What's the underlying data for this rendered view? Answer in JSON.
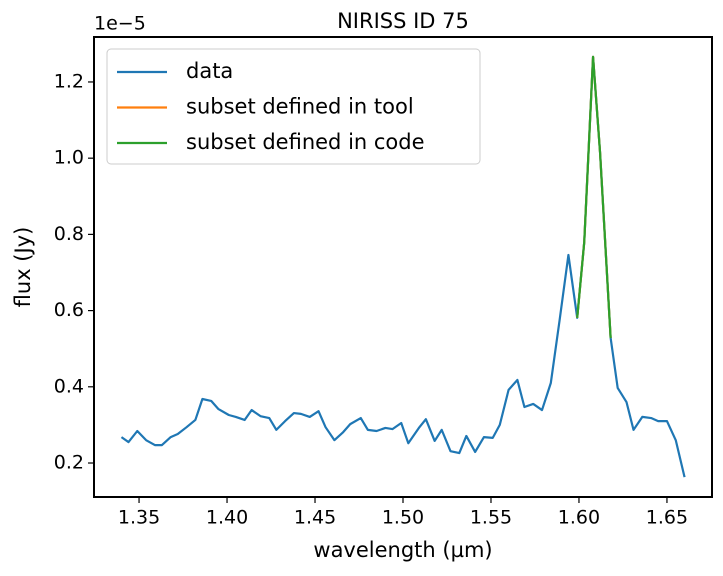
{
  "chart_data": {
    "type": "line",
    "title": "NIRISS ID 75",
    "x_label": "wavelength (µm)",
    "y_label": "flux (Jy)",
    "y_offset_label": "1e−5",
    "xlim": [
      1.3244,
      1.6756
    ],
    "ylim": [
      0.1108,
      1.318
    ],
    "xticks": [
      1.35,
      {
        "value": 1.4,
        "label": "1.40"
      },
      1.45,
      {
        "value": 1.5,
        "label": "1.50"
      },
      1.55,
      {
        "value": 1.6,
        "label": "1.60"
      },
      1.65
    ],
    "yticks": [
      0.2,
      0.4,
      0.6,
      0.8,
      {
        "value": 1,
        "label": "1.0"
      },
      1.2
    ],
    "legend": "upper left",
    "grid": false,
    "series": [
      {
        "name": "data",
        "color": "#1f77b4",
        "x": [
          1.34,
          1.344,
          1.349,
          1.354,
          1.359,
          1.363,
          1.368,
          1.372,
          1.377,
          1.382,
          1.386,
          1.391,
          1.395,
          1.401,
          1.405,
          1.41,
          1.414,
          1.419,
          1.424,
          1.428,
          1.433,
          1.438,
          1.442,
          1.447,
          1.452,
          1.456,
          1.461,
          1.466,
          1.47,
          1.476,
          1.48,
          1.485,
          1.49,
          1.494,
          1.499,
          1.503,
          1.509,
          1.513,
          1.518,
          1.522,
          1.527,
          1.532,
          1.536,
          1.541,
          1.546,
          1.551,
          1.555,
          1.56,
          1.565,
          1.569,
          1.574,
          1.579,
          1.584,
          1.589,
          1.594,
          1.599,
          1.603,
          1.608,
          1.612,
          1.618,
          1.622,
          1.627,
          1.631,
          1.636,
          1.641,
          1.645,
          1.65,
          1.655,
          1.66
        ],
        "values": [
          0.268,
          0.255,
          0.284,
          0.26,
          0.247,
          0.247,
          0.268,
          0.276,
          0.294,
          0.313,
          0.368,
          0.363,
          0.342,
          0.326,
          0.321,
          0.313,
          0.339,
          0.323,
          0.318,
          0.287,
          0.31,
          0.331,
          0.329,
          0.321,
          0.336,
          0.294,
          0.26,
          0.281,
          0.302,
          0.318,
          0.287,
          0.284,
          0.292,
          0.289,
          0.305,
          0.252,
          0.292,
          0.315,
          0.258,
          0.287,
          0.231,
          0.226,
          0.271,
          0.229,
          0.268,
          0.266,
          0.3,
          0.392,
          0.418,
          0.347,
          0.355,
          0.339,
          0.41,
          0.575,
          0.746,
          0.581,
          0.78,
          1.266,
          1.014,
          0.528,
          0.397,
          0.36,
          0.287,
          0.321,
          0.318,
          0.31,
          0.31,
          0.26,
          0.163
        ]
      },
      {
        "name": "subset defined in tool",
        "color": "#ff7f0e",
        "x": [
          1.599,
          1.603,
          1.608,
          1.612,
          1.618
        ],
        "values": [
          0.581,
          0.78,
          1.266,
          1.014,
          0.528
        ]
      },
      {
        "name": "subset defined in code",
        "color": "#2ca02c",
        "x": [
          1.599,
          1.603,
          1.608,
          1.612,
          1.618
        ],
        "values": [
          0.581,
          0.78,
          1.266,
          1.014,
          0.528
        ]
      }
    ]
  }
}
